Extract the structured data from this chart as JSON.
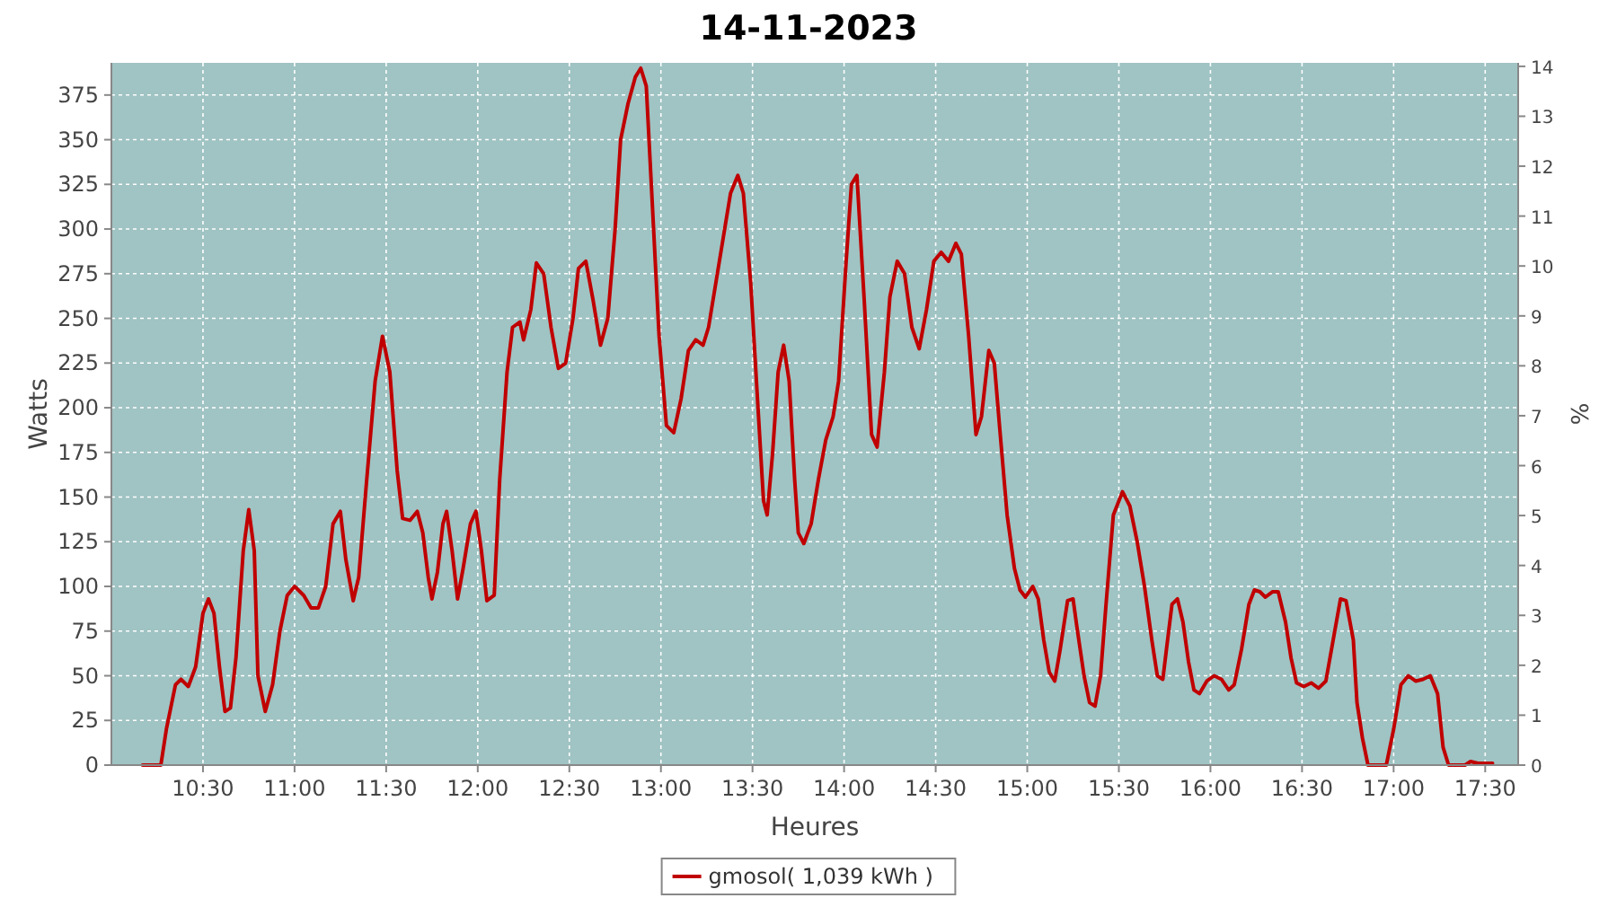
{
  "chart_data": {
    "type": "line",
    "title": "14-11-2023",
    "xlabel": "Heures",
    "ylabel": "Watts",
    "y2label": "%",
    "xlim": [
      10.0,
      17.68
    ],
    "xticks": [
      {
        "value": 10.5,
        "label": "10:30"
      },
      {
        "value": 11,
        "label": "11:00"
      },
      {
        "value": 11.5,
        "label": "11:30"
      },
      {
        "value": 12,
        "label": "12:00"
      },
      {
        "value": 12.5,
        "label": "12:30"
      },
      {
        "value": 13,
        "label": "13:00"
      },
      {
        "value": 13.5,
        "label": "13:30"
      },
      {
        "value": 14,
        "label": "14:00"
      },
      {
        "value": 14.5,
        "label": "14:30"
      },
      {
        "value": 15,
        "label": "15:00"
      },
      {
        "value": 15.5,
        "label": "15:30"
      },
      {
        "value": 16,
        "label": "16:00"
      },
      {
        "value": 16.5,
        "label": "16:30"
      },
      {
        "value": 17,
        "label": "17:00"
      },
      {
        "value": 17.5,
        "label": "17:30"
      }
    ],
    "ylim": [
      0,
      393
    ],
    "yticks": [
      0,
      25,
      50,
      75,
      100,
      125,
      150,
      175,
      200,
      225,
      250,
      275,
      300,
      325,
      350,
      375
    ],
    "y2lim": [
      0,
      14.07
    ],
    "y2ticks": [
      0,
      1,
      2,
      3,
      4,
      5,
      6,
      7,
      8,
      9,
      10,
      11,
      12,
      13,
      14
    ],
    "grid": true,
    "legend": "bottom",
    "line_style": "solid",
    "marker": "none",
    "x": [
      10.17,
      10.27,
      10.3,
      10.35,
      10.38,
      10.42,
      10.46,
      10.5,
      10.53,
      10.56,
      10.59,
      10.62,
      10.65,
      10.68,
      10.72,
      10.75,
      10.78,
      10.8,
      10.84,
      10.88,
      10.92,
      10.96,
      11.0,
      11.05,
      11.09,
      11.13,
      11.17,
      11.21,
      11.25,
      11.28,
      11.32,
      11.35,
      11.39,
      11.44,
      11.48,
      11.52,
      11.56,
      11.59,
      11.63,
      11.67,
      11.7,
      11.73,
      11.75,
      11.78,
      11.81,
      11.83,
      11.86,
      11.89,
      11.92,
      11.96,
      11.99,
      12.02,
      12.05,
      12.09,
      12.12,
      12.16,
      12.19,
      12.23,
      12.25,
      12.29,
      12.32,
      12.36,
      12.4,
      12.44,
      12.48,
      12.52,
      12.55,
      12.59,
      12.63,
      12.67,
      12.71,
      12.75,
      12.78,
      12.82,
      12.86,
      12.89,
      12.92,
      12.96,
      12.99,
      13.03,
      13.07,
      13.11,
      13.15,
      13.19,
      13.23,
      13.26,
      13.3,
      13.34,
      13.38,
      13.42,
      13.45,
      13.49,
      13.53,
      13.56,
      13.58,
      13.61,
      13.64,
      13.67,
      13.7,
      13.73,
      13.75,
      13.78,
      13.82,
      13.86,
      13.9,
      13.94,
      13.97,
      14.01,
      14.04,
      14.07,
      14.11,
      14.15,
      14.18,
      14.22,
      14.25,
      14.29,
      14.33,
      14.37,
      14.41,
      14.45,
      14.49,
      14.53,
      14.57,
      14.61,
      14.64,
      14.68,
      14.72,
      14.75,
      14.79,
      14.82,
      14.85,
      14.89,
      14.93,
      14.96,
      14.99,
      15.03,
      15.06,
      15.09,
      15.12,
      15.15,
      15.18,
      15.22,
      15.25,
      15.27,
      15.31,
      15.34,
      15.37,
      15.4,
      15.43,
      15.47,
      15.52,
      15.56,
      15.6,
      15.64,
      15.68,
      15.71,
      15.74,
      15.76,
      15.79,
      15.82,
      15.85,
      15.88,
      15.91,
      15.94,
      15.98,
      16.02,
      16.06,
      16.1,
      16.13,
      16.17,
      16.21,
      16.24,
      16.27,
      16.3,
      16.34,
      16.37,
      16.41,
      16.44,
      16.47,
      16.51,
      16.55,
      16.59,
      16.63,
      16.67,
      16.71,
      16.74,
      16.78,
      16.8,
      16.83,
      16.86,
      16.96,
      17.0,
      17.04,
      17.08,
      17.12,
      17.16,
      17.2,
      17.24,
      17.27,
      17.3,
      17.39,
      17.42,
      17.46,
      17.54
    ],
    "series": [
      {
        "name": "gmosol( 1,039 kWh )",
        "color": "#c00000",
        "values": [
          0,
          0,
          20,
          45,
          48,
          44,
          55,
          85,
          93,
          85,
          55,
          30,
          32,
          60,
          120,
          143,
          120,
          50,
          30,
          45,
          75,
          95,
          100,
          95,
          88,
          88,
          100,
          135,
          142,
          115,
          92,
          105,
          155,
          215,
          240,
          220,
          165,
          138,
          137,
          142,
          130,
          105,
          93,
          108,
          135,
          142,
          120,
          93,
          110,
          135,
          142,
          120,
          92,
          95,
          160,
          220,
          245,
          248,
          238,
          255,
          281,
          275,
          245,
          222,
          225,
          250,
          278,
          282,
          260,
          235,
          250,
          300,
          350,
          370,
          385,
          390,
          380,
          300,
          240,
          190,
          186,
          205,
          232,
          238,
          235,
          245,
          270,
          295,
          320,
          330,
          320,
          270,
          200,
          148,
          140,
          175,
          220,
          235,
          215,
          160,
          130,
          124,
          135,
          160,
          182,
          195,
          215,
          280,
          325,
          330,
          260,
          185,
          178,
          220,
          262,
          282,
          275,
          245,
          233,
          255,
          282,
          287,
          282,
          292,
          286,
          240,
          185,
          195,
          232,
          225,
          188,
          140,
          110,
          98,
          94,
          100,
          93,
          70,
          52,
          47,
          65,
          92,
          93,
          78,
          50,
          35,
          33,
          50,
          90,
          140,
          153,
          145,
          125,
          100,
          70,
          50,
          48,
          65,
          90,
          93,
          80,
          58,
          42,
          40,
          47,
          50,
          48,
          42,
          45,
          65,
          90,
          98,
          97,
          94,
          97,
          97,
          80,
          60,
          46,
          44,
          46,
          43,
          47,
          70,
          93,
          92,
          70,
          35,
          15,
          0,
          0,
          20,
          45,
          50,
          47,
          48,
          50,
          40,
          10,
          0,
          0,
          2,
          1,
          1
        ]
      }
    ]
  }
}
